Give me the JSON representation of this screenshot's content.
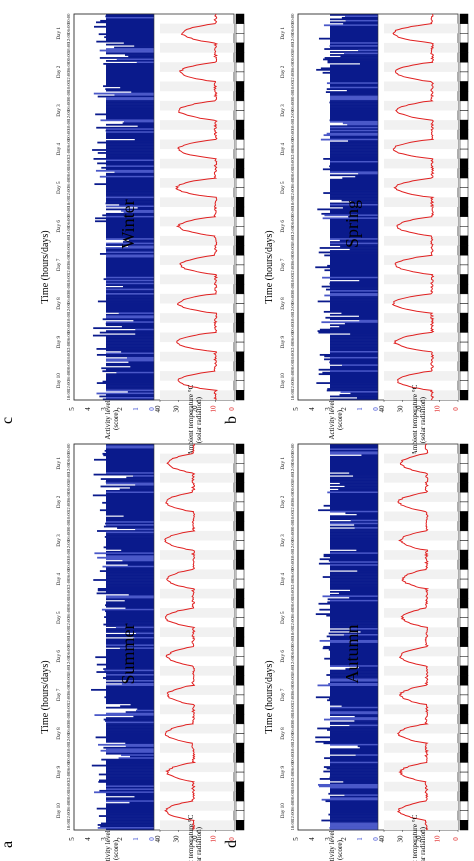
{
  "panels": [
    {
      "letter": "a",
      "season": "Winter",
      "chart_data": {
        "type": "line",
        "ylabel_temp": "Ambient temperature °C\n(solar radiation)",
        "ylabel_activity": "Activity level\n(score)",
        "xlabel": "Time (hours/days)",
        "temp_ticks": [
          "40",
          "30",
          "20",
          "10",
          "0"
        ],
        "activity_ticks": [
          "5",
          "4",
          "3",
          "2",
          "1",
          "0"
        ],
        "time_ticks": [
          "00:00",
          "06:00",
          "12:00",
          "18:00"
        ],
        "days": [
          "Day 1",
          "Day 2",
          "Day 3",
          "Day 4",
          "Day 5",
          "Day 6",
          "Day 7",
          "Day 8",
          "Day 9",
          "Day 10"
        ],
        "temp_series": {
          "name": "",
          "min_c": 10,
          "max_c": 32,
          "peaks": [
            28,
            29,
            30,
            30,
            31,
            30,
            29,
            30,
            31,
            30
          ]
        },
        "activity_series": {
          "base_level": 3,
          "max_level": 4
        }
      }
    },
    {
      "letter": "b",
      "season": "Spring",
      "chart_data": {
        "type": "line",
        "ylabel_temp": "Ambient temperature °C\n(solar radiation)",
        "ylabel_activity": "Activity level\n(score)",
        "xlabel": "Time (hours/days)",
        "temp_ticks": [
          "40",
          "30",
          "20",
          "10",
          "0"
        ],
        "activity_ticks": [
          "5",
          "4",
          "3",
          "2",
          "1",
          "0"
        ],
        "time_ticks": [
          "00:00",
          "06:00",
          "12:00",
          "18:00"
        ],
        "days": [
          "Day 1",
          "Day 2",
          "Day 3",
          "Day 4",
          "Day 5",
          "Day 6",
          "Day 7",
          "Day 8",
          "Day 9",
          "Day 10"
        ],
        "temp_series": {
          "name": "",
          "min_c": 14,
          "max_c": 36,
          "peaks": [
            35,
            34,
            33,
            35,
            34,
            33,
            34,
            35,
            34,
            33
          ]
        },
        "activity_series": {
          "base_level": 3,
          "max_level": 4
        }
      }
    },
    {
      "letter": "c",
      "season": "Summer",
      "chart_data": {
        "type": "line",
        "ylabel_temp": "Ambient temperature °C\n(solar radiation)",
        "ylabel_activity": "Activity level\n(score)",
        "xlabel": "Time (hours/days)",
        "temp_ticks": [
          "40",
          "30",
          "20",
          "10",
          "0"
        ],
        "activity_ticks": [
          "5",
          "4",
          "3",
          "2",
          "1",
          "0"
        ],
        "time_ticks": [
          "00:00",
          "06:00",
          "12:00",
          "18:00"
        ],
        "days": [
          "Day 1",
          "Day 2",
          "Day 3",
          "Day 4",
          "Day 5",
          "Day 6",
          "Day 7",
          "Day 8",
          "Day 9",
          "Day 10"
        ],
        "temp_series": {
          "name": "",
          "min_c": 22,
          "max_c": 38,
          "peaks": [
            36,
            37,
            37,
            36,
            37,
            36,
            36,
            37,
            36,
            37
          ]
        },
        "activity_series": {
          "base_level": 3,
          "max_level": 4
        }
      }
    },
    {
      "letter": "d",
      "season": "Autumn",
      "chart_data": {
        "type": "line",
        "ylabel_temp": "Ambient temperature °C\n(solar radiation)",
        "ylabel_activity": "Activity level\n(score)",
        "xlabel": "Time (hours/days)",
        "temp_ticks": [
          "40",
          "30",
          "20",
          "10",
          "0"
        ],
        "activity_ticks": [
          "5",
          "4",
          "3",
          "2",
          "1",
          "0"
        ],
        "time_ticks": [
          "00:00",
          "06:00",
          "12:00",
          "18:00"
        ],
        "days": [
          "Day 1",
          "Day 2",
          "Day 3",
          "Day 4",
          "Day 5",
          "Day 6",
          "Day 7",
          "Day 8",
          "Day 9",
          "Day 10"
        ],
        "temp_series": {
          "name": "",
          "min_c": 17,
          "max_c": 33,
          "peaks": [
            31,
            32,
            31,
            30,
            30,
            31,
            31,
            32,
            31,
            32
          ]
        },
        "activity_series": {
          "base_level": 3,
          "max_level": 4
        }
      }
    }
  ],
  "colors": {
    "temperature_line": "#e02020",
    "activity_bars": "#0a1a8c",
    "activity_light": "#4a58c8",
    "zero_label": "#2a3cd0",
    "night_band": "#000000",
    "grid": "#c8c8c8"
  }
}
